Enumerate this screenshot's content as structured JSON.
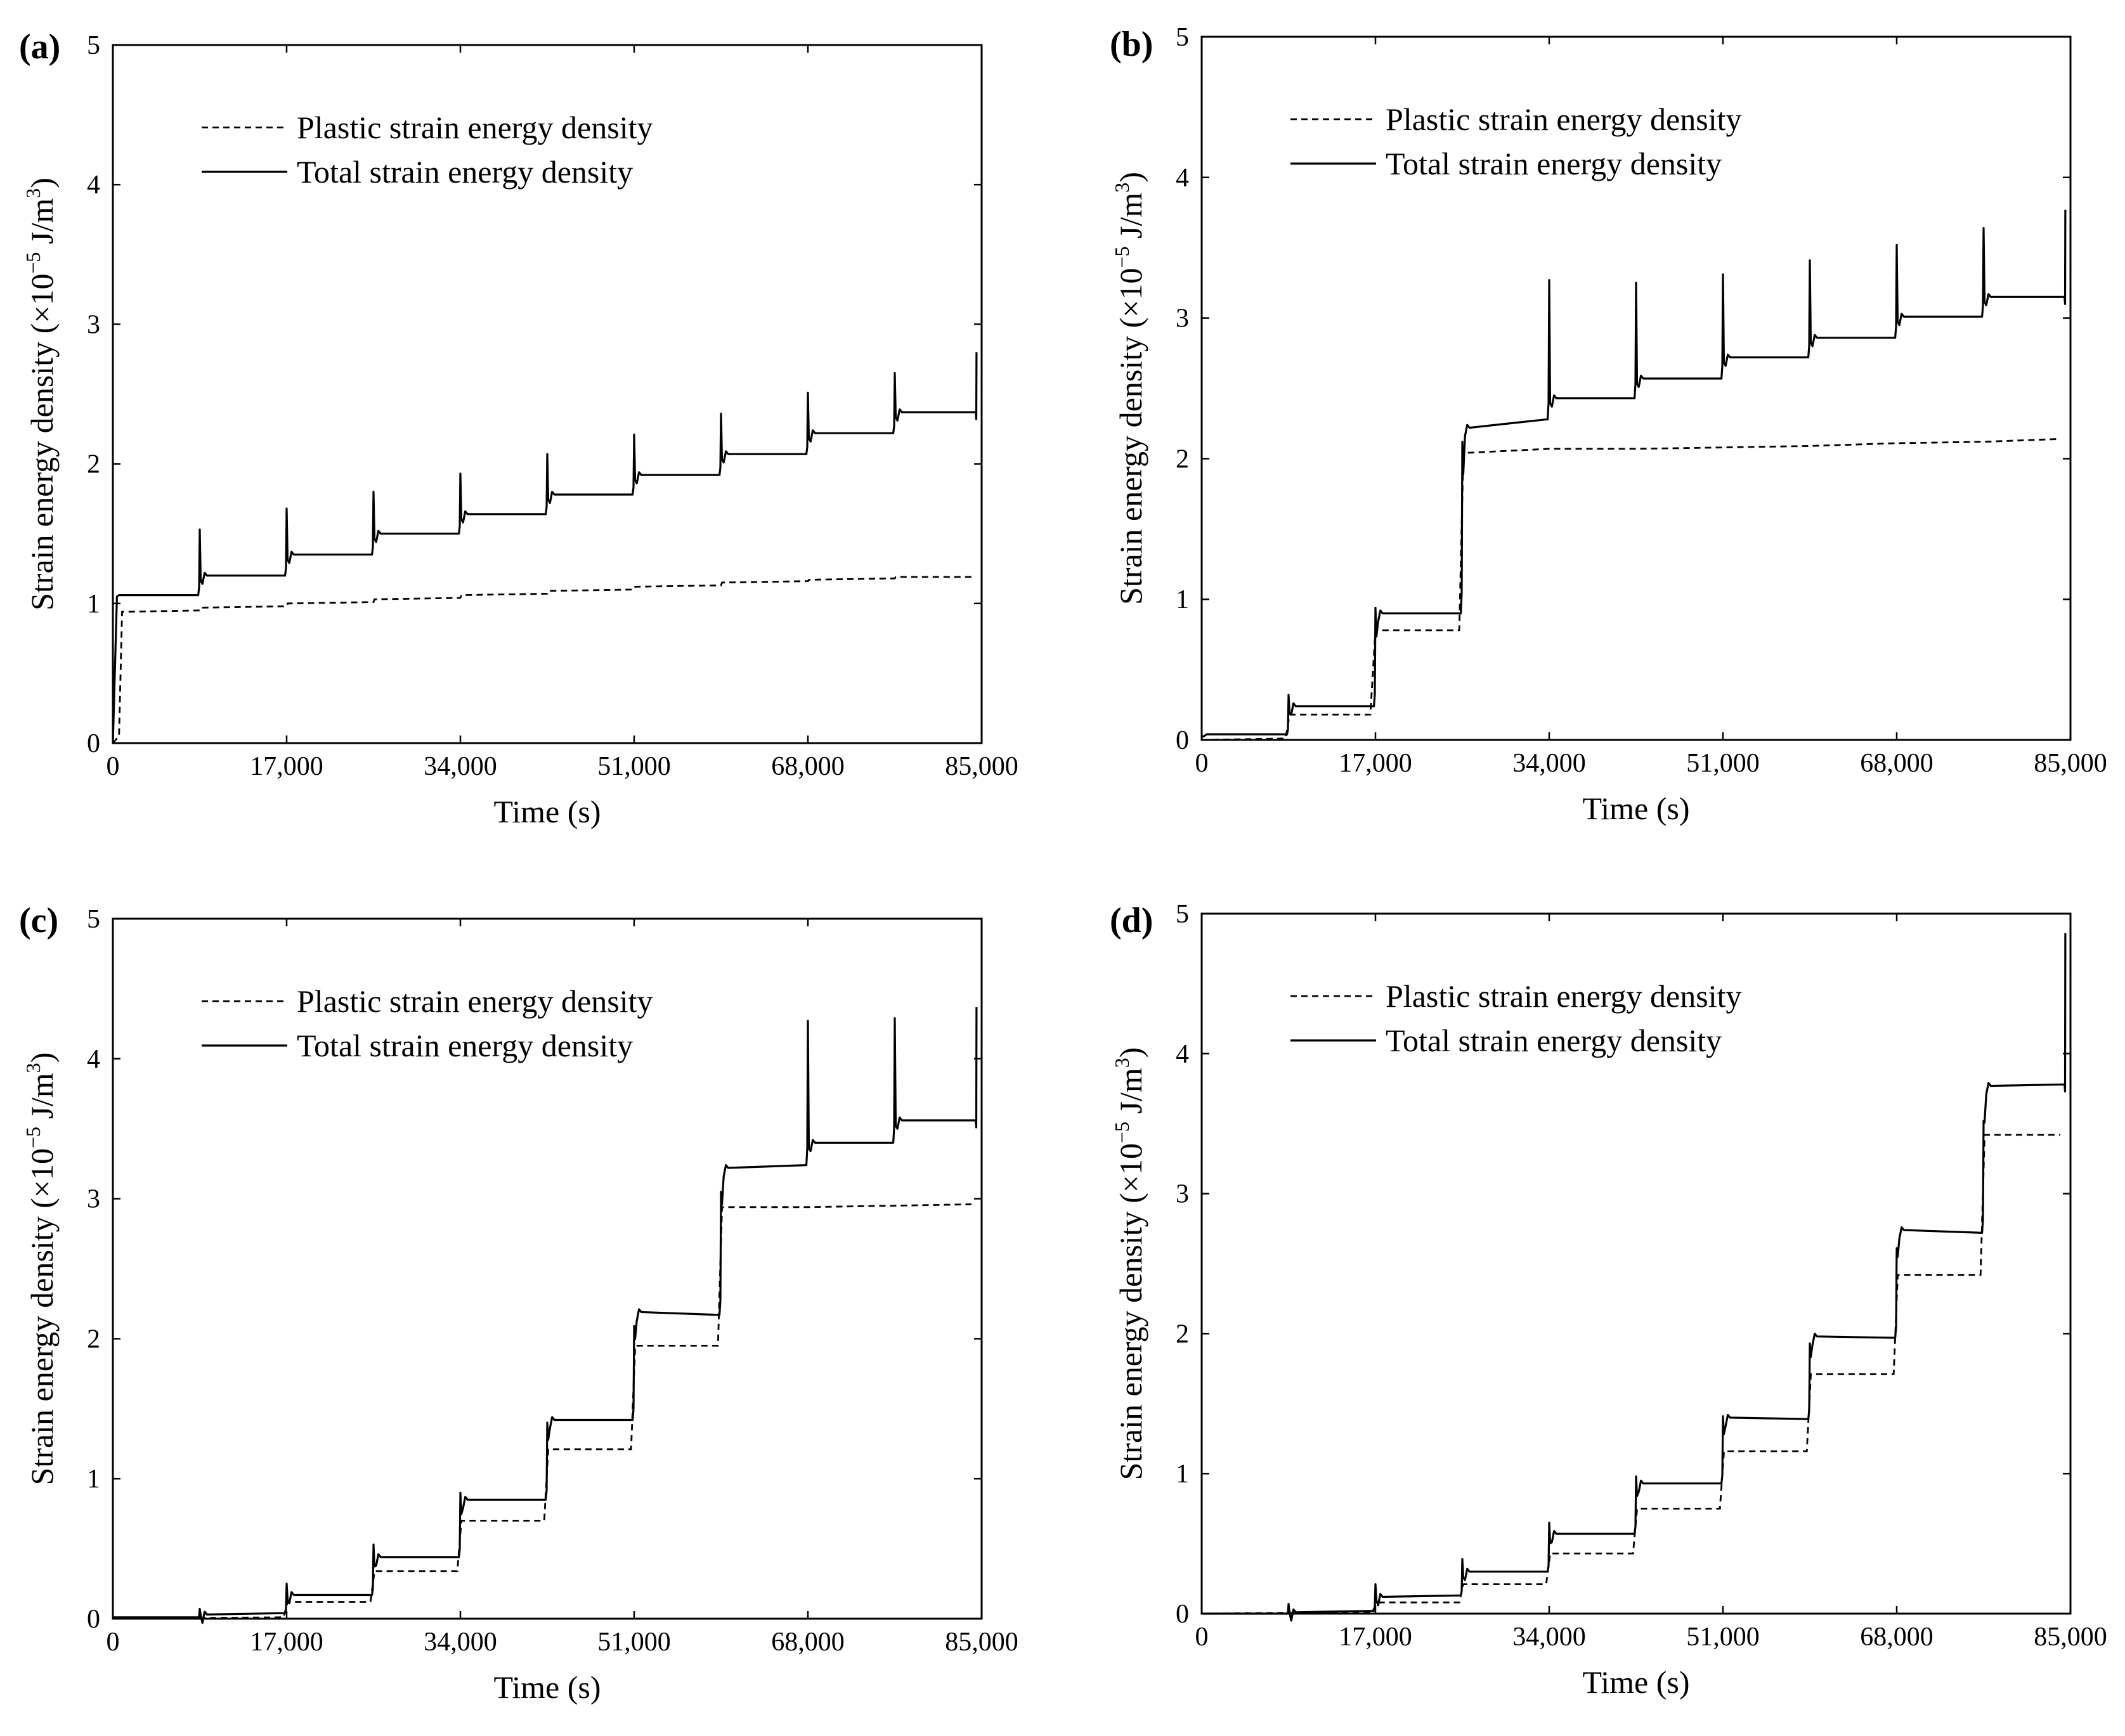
{
  "chart_data": [
    {
      "type": "line",
      "panel_label": "(a)",
      "xlabel": "Time (s)",
      "ylabel_main": "Strain energy density (×10",
      "ylabel_exp": "−5",
      "ylabel_unit": " J/m",
      "ylabel_unit_exp": "3",
      "ylabel_close": ")",
      "xlim": [
        0,
        85000
      ],
      "ylim": [
        0,
        5
      ],
      "xticks": [
        0,
        17000,
        34000,
        51000,
        68000,
        85000
      ],
      "xtick_labels": [
        "0",
        "17,000",
        "34,000",
        "51,000",
        "68,000",
        "85,000"
      ],
      "yticks": [
        0,
        1,
        2,
        3,
        4,
        5
      ],
      "ytick_labels": [
        "0",
        "1",
        "2",
        "3",
        "4",
        "5"
      ],
      "legend": [
        "Plastic strain energy density",
        "Total strain energy density"
      ],
      "legend_position": "top-left",
      "series": [
        {
          "name": "Plastic strain energy density",
          "style": "dashed",
          "x": [
            0,
            600,
            900,
            8500,
            8600,
            17000,
            17100,
            25500,
            25600,
            34000,
            34100,
            42500,
            42600,
            51000,
            51100,
            59500,
            59600,
            68000,
            68100,
            76500,
            76600,
            84000
          ],
          "y": [
            0,
            0.05,
            0.94,
            0.95,
            0.97,
            0.98,
            1.0,
            1.01,
            1.03,
            1.04,
            1.06,
            1.07,
            1.09,
            1.1,
            1.12,
            1.13,
            1.15,
            1.16,
            1.17,
            1.18,
            1.19,
            1.19
          ]
        },
        {
          "name": "Total strain energy density",
          "style": "solid",
          "steps": [
            [
              8500,
              1.06,
              1.2,
              1.53
            ],
            [
              17000,
              1.2,
              1.35,
              1.68
            ],
            [
              25500,
              1.35,
              1.5,
              1.8
            ],
            [
              34000,
              1.5,
              1.64,
              1.93
            ],
            [
              42500,
              1.64,
              1.78,
              2.07
            ],
            [
              51000,
              1.78,
              1.92,
              2.21
            ],
            [
              59500,
              1.92,
              2.07,
              2.36
            ],
            [
              68000,
              2.07,
              2.22,
              2.51
            ],
            [
              76500,
              2.22,
              2.37,
              2.65
            ]
          ],
          "start": {
            "x": 0,
            "y": 0,
            "x1": 400,
            "y1": 1.05,
            "y_base": 1.06
          },
          "end": {
            "x": 84500,
            "y_base": 2.37,
            "y_end": 2.8
          }
        }
      ]
    },
    {
      "type": "line",
      "panel_label": "(b)",
      "xlabel": "Time (s)",
      "ylabel_main": "Strain energy density (×10",
      "ylabel_exp": "−5",
      "ylabel_unit": " J/m",
      "ylabel_unit_exp": "3",
      "ylabel_close": ")",
      "xlim": [
        0,
        85000
      ],
      "ylim": [
        0,
        5
      ],
      "xticks": [
        0,
        17000,
        34000,
        51000,
        68000,
        85000
      ],
      "xtick_labels": [
        "0",
        "17,000",
        "34,000",
        "51,000",
        "68,000",
        "85,000"
      ],
      "yticks": [
        0,
        1,
        2,
        3,
        4,
        5
      ],
      "ytick_labels": [
        "0",
        "1",
        "2",
        "3",
        "4",
        "5"
      ],
      "legend": [
        "Plastic strain energy density",
        "Total strain energy density"
      ],
      "legend_position": "top-left",
      "series": [
        {
          "name": "Plastic strain energy density",
          "style": "dashed",
          "x": [
            0,
            8200,
            8600,
            16500,
            17000,
            25200,
            25600,
            34000,
            42500,
            51000,
            59500,
            68000,
            76500,
            84000
          ],
          "y": [
            0,
            0.01,
            0.18,
            0.18,
            0.78,
            0.78,
            2.04,
            2.07,
            2.07,
            2.08,
            2.09,
            2.11,
            2.12,
            2.14
          ]
        },
        {
          "name": "Total strain energy density",
          "style": "solid",
          "steps": [
            [
              8500,
              0.04,
              0.24,
              0.32
            ],
            [
              17000,
              0.24,
              0.9,
              0.94
            ],
            [
              25500,
              0.9,
              2.22,
              2.12
            ],
            [
              34000,
              2.28,
              2.43,
              3.27
            ],
            [
              42500,
              2.43,
              2.57,
              3.25
            ],
            [
              51000,
              2.57,
              2.72,
              3.31
            ],
            [
              59500,
              2.72,
              2.86,
              3.41
            ],
            [
              68000,
              2.86,
              3.01,
              3.52
            ],
            [
              76500,
              3.01,
              3.15,
              3.64
            ]
          ],
          "start": {
            "x": 0,
            "y": 0.02,
            "x1": 300,
            "y1": 0.03,
            "y_base": 0.04
          },
          "end": {
            "x": 84500,
            "y_base": 3.15,
            "y_end": 3.77
          }
        }
      ]
    },
    {
      "type": "line",
      "panel_label": "(c)",
      "xlabel": "Time (s)",
      "ylabel_main": "Strain energy density (×10",
      "ylabel_exp": "−5",
      "ylabel_unit": " J/m",
      "ylabel_unit_exp": "3",
      "ylabel_close": ")",
      "xlim": [
        0,
        85000
      ],
      "ylim": [
        0,
        5
      ],
      "xticks": [
        0,
        17000,
        34000,
        51000,
        68000,
        85000
      ],
      "xtick_labels": [
        "0",
        "17,000",
        "34,000",
        "51,000",
        "68,000",
        "85,000"
      ],
      "yticks": [
        0,
        1,
        2,
        3,
        4,
        5
      ],
      "ytick_labels": [
        "0",
        "1",
        "2",
        "3",
        "4",
        "5"
      ],
      "legend": [
        "Plastic strain energy density",
        "Total strain energy density"
      ],
      "legend_position": "top-left",
      "series": [
        {
          "name": "Plastic strain energy density",
          "style": "dashed",
          "x": [
            0,
            16700,
            17100,
            25200,
            25600,
            33700,
            34100,
            42200,
            42600,
            50700,
            51100,
            59200,
            59600,
            68000,
            76500,
            84000
          ],
          "y": [
            0,
            0.01,
            0.12,
            0.12,
            0.34,
            0.34,
            0.7,
            0.7,
            1.21,
            1.21,
            1.95,
            1.95,
            2.94,
            2.94,
            2.95,
            2.96
          ]
        },
        {
          "name": "Total strain energy density",
          "style": "solid",
          "steps": [
            [
              8500,
              0.01,
              0.03,
              0.07
            ],
            [
              17000,
              0.04,
              0.17,
              0.25
            ],
            [
              25500,
              0.17,
              0.44,
              0.53
            ],
            [
              34000,
              0.44,
              0.85,
              0.9
            ],
            [
              42500,
              0.85,
              1.42,
              1.4
            ],
            [
              51000,
              1.42,
              2.19,
              2.09
            ],
            [
              59500,
              2.17,
              3.22,
              3.05
            ],
            [
              68000,
              3.24,
              3.4,
              4.27
            ],
            [
              76500,
              3.4,
              3.56,
              4.29
            ]
          ],
          "start": {
            "x": 0,
            "y": 0.01,
            "x1": 300,
            "y1": 0.01,
            "y_base": 0.01
          },
          "end": {
            "x": 84500,
            "y_base": 3.56,
            "y_end": 4.37
          }
        }
      ]
    },
    {
      "type": "line",
      "panel_label": "(d)",
      "xlabel": "Time (s)",
      "ylabel_main": "Strain energy density (×10",
      "ylabel_exp": "−5",
      "ylabel_unit": " J/m",
      "ylabel_unit_exp": "3",
      "ylabel_close": ")",
      "xlim": [
        0,
        85000
      ],
      "ylim": [
        0,
        5
      ],
      "xticks": [
        0,
        17000,
        34000,
        51000,
        68000,
        85000
      ],
      "xtick_labels": [
        "0",
        "17,000",
        "34,000",
        "51,000",
        "68,000",
        "85,000"
      ],
      "yticks": [
        0,
        1,
        2,
        3,
        4,
        5
      ],
      "ytick_labels": [
        "0",
        "1",
        "2",
        "3",
        "4",
        "5"
      ],
      "legend": [
        "Plastic strain energy density",
        "Total strain energy density"
      ],
      "legend_position": "top-left",
      "series": [
        {
          "name": "Plastic strain energy density",
          "style": "dashed",
          "x": [
            0,
            16700,
            17100,
            25200,
            25600,
            33700,
            34100,
            42200,
            42600,
            50700,
            51100,
            59200,
            59600,
            67700,
            68100,
            76200,
            76600,
            84000
          ],
          "y": [
            0,
            0.01,
            0.08,
            0.08,
            0.21,
            0.21,
            0.43,
            0.43,
            0.75,
            0.75,
            1.16,
            1.16,
            1.71,
            1.71,
            2.42,
            2.42,
            3.42,
            3.42
          ]
        },
        {
          "name": "Total strain energy density",
          "style": "solid",
          "steps": [
            [
              8500,
              0.0,
              0.01,
              0.07
            ],
            [
              17000,
              0.02,
              0.12,
              0.21
            ],
            [
              25500,
              0.13,
              0.3,
              0.39
            ],
            [
              34000,
              0.3,
              0.57,
              0.65
            ],
            [
              42500,
              0.57,
              0.93,
              0.98
            ],
            [
              51000,
              0.93,
              1.4,
              1.41
            ],
            [
              59500,
              1.39,
              1.98,
              1.93
            ],
            [
              68000,
              1.97,
              2.74,
              2.61
            ],
            [
              76500,
              2.72,
              3.77,
              3.52
            ]
          ],
          "start": {
            "x": 0,
            "y": 0.0,
            "x1": 300,
            "y1": 0.0,
            "y_base": 0.0
          },
          "end": {
            "x": 84500,
            "y_base": 3.78,
            "y_end": 4.86
          }
        }
      ]
    }
  ]
}
